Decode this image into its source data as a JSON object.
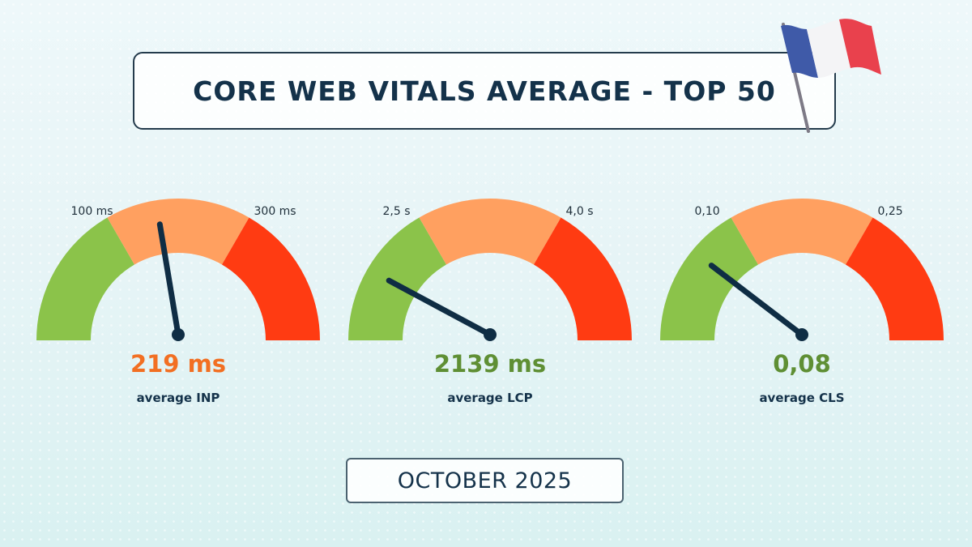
{
  "title": "CORE WEB VITALS AVERAGE - TOP 50",
  "date_label": "OCTOBER 2025",
  "flag": {
    "icon": "france-flag-icon",
    "colors": [
      "#3f5aa8",
      "#f4f4f6",
      "#e9414d"
    ]
  },
  "colors": {
    "good": "#8bc34a",
    "needs_improvement": "#ffa060",
    "poor": "#ff3b12",
    "needle": "#0f2d44"
  },
  "chart_data": [
    {
      "type": "gauge",
      "metric": "INP",
      "value_text": "219 ms",
      "label": "average INP",
      "value_color": "#f26f22",
      "thresholds": [
        "100 ms",
        "300 ms"
      ],
      "needle_fraction": 0.45
    },
    {
      "type": "gauge",
      "metric": "LCP",
      "value_text": "2139 ms",
      "label": "average LCP",
      "value_color": "#5f8f34",
      "thresholds": [
        "2,5 s",
        "4,0 s"
      ],
      "needle_fraction": 0.17
    },
    {
      "type": "gauge",
      "metric": "CLS",
      "value_text": "0,08",
      "label": "average CLS",
      "value_color": "#5f8f34",
      "thresholds": [
        "0,10",
        "0,25"
      ],
      "needle_fraction": 0.22
    }
  ]
}
